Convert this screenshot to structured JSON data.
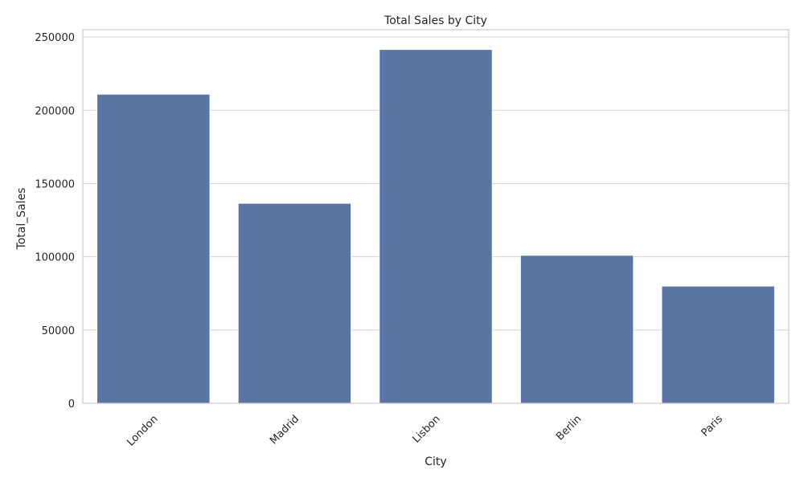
{
  "chart_data": {
    "type": "bar",
    "title": "Total Sales by City",
    "xlabel": "City",
    "ylabel": "Total_Sales",
    "categories": [
      "London",
      "Madrid",
      "Lisbon",
      "Berlin",
      "Paris"
    ],
    "values": [
      211000,
      136500,
      241500,
      101000,
      80000
    ],
    "ylim": [
      0,
      255000
    ],
    "yticks": [
      0,
      50000,
      100000,
      150000,
      200000,
      250000
    ],
    "ytick_labels": [
      "0",
      "50000",
      "100000",
      "150000",
      "200000",
      "250000"
    ],
    "grid": "y",
    "bar_color": "#5975a4",
    "grid_color": "#d0d0d0",
    "frame_color": "#cccccc",
    "text_color": "#262626",
    "xtick_rotation_deg": -45
  }
}
